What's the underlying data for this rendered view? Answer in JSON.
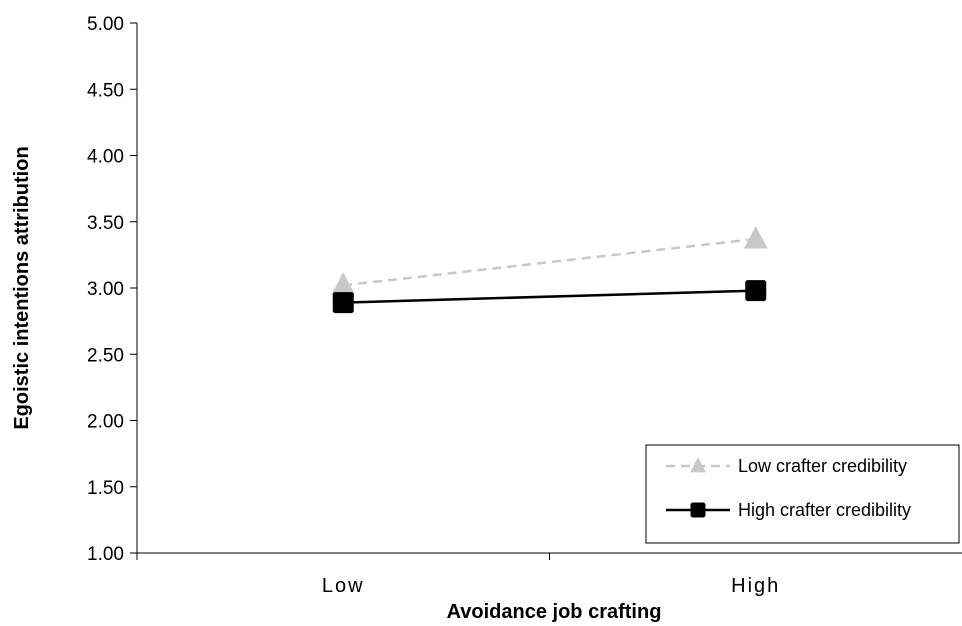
{
  "chart_data": {
    "type": "line",
    "title": "",
    "xlabel": "Avoidance job crafting",
    "ylabel": "Egoistic intentions attribution",
    "categories": [
      "Low",
      "High"
    ],
    "ylim": [
      1.0,
      5.0
    ],
    "yticks": [
      "1.00",
      "1.50",
      "2.00",
      "2.50",
      "3.00",
      "3.50",
      "4.00",
      "4.50",
      "5.00"
    ],
    "grid": false,
    "legend_position": "bottom-right",
    "series": [
      {
        "name": "Low crafter credibility",
        "values": [
          3.02,
          3.37
        ],
        "color": "#c8c8c8",
        "line_style": "dashed",
        "marker": "triangle"
      },
      {
        "name": "High crafter credibility",
        "values": [
          2.89,
          2.98
        ],
        "color": "#000000",
        "line_style": "solid",
        "marker": "square"
      }
    ]
  }
}
